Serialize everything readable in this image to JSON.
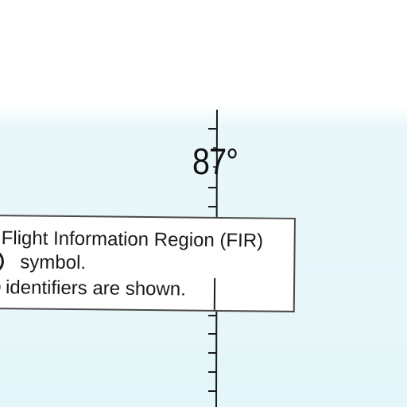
{
  "map": {
    "longitude_label": "87°",
    "water_color": "#e4f6f9",
    "land_color": "#ffffff",
    "grid_line_color": "#1a1a1a"
  },
  "note": {
    "lines": [
      "Flight Information Region (FIR)",
      "symbol.",
      "identifiers are shown."
    ],
    "border_color": "#4a4a4a",
    "background_color": "#ffffff"
  }
}
